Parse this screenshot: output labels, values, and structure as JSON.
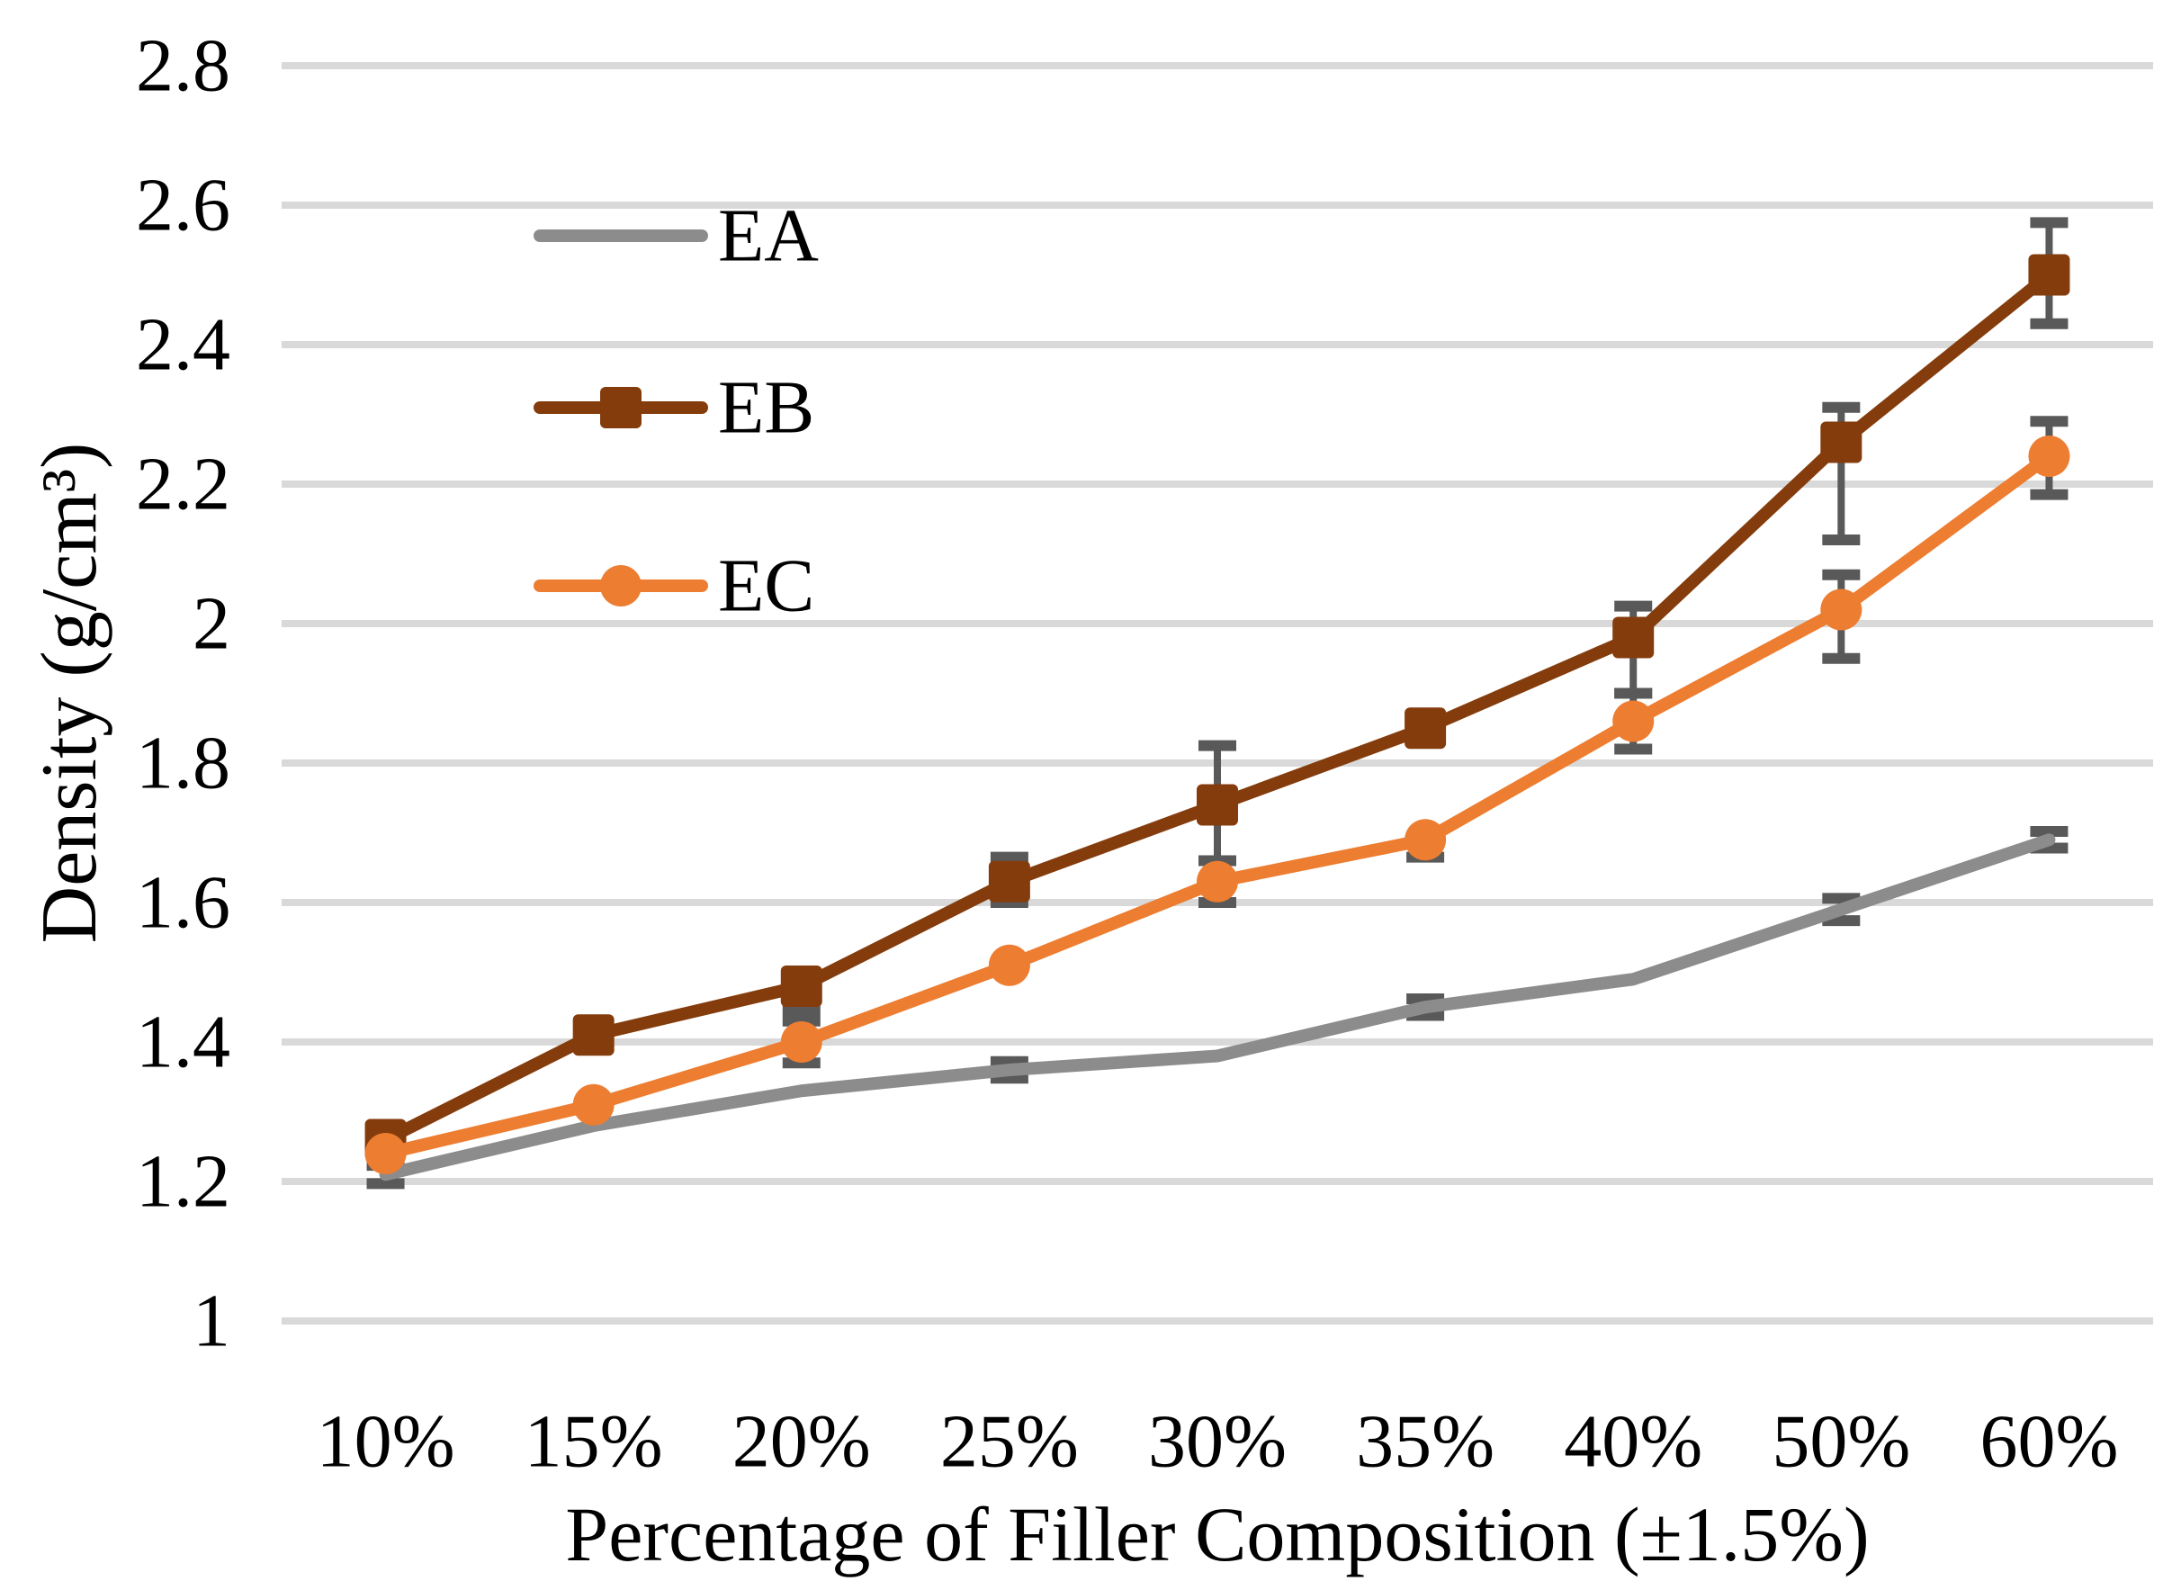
{
  "chart_data": {
    "type": "line",
    "title": "",
    "categories": [
      "10%",
      "15%",
      "20%",
      "25%",
      "30%",
      "35%",
      "40%",
      "50%",
      "60%"
    ],
    "series": [
      {
        "name": "EA",
        "color": "#8C8C8C",
        "marker": "none",
        "values": [
          1.21,
          1.28,
          1.33,
          1.36,
          1.38,
          1.45,
          1.49,
          1.59,
          1.69
        ],
        "err_plus": [
          0.013,
          0,
          0,
          0.012,
          0,
          0.012,
          0,
          0.016,
          0.012
        ],
        "err_minus": [
          0.013,
          0,
          0,
          0.012,
          0,
          0.012,
          0,
          0.016,
          0.012
        ]
      },
      {
        "name": "EB",
        "color": "#843C0C",
        "marker": "square",
        "values": [
          1.26,
          1.41,
          1.48,
          1.63,
          1.74,
          1.85,
          1.98,
          2.26,
          2.5
        ],
        "err_plus": [
          0,
          0,
          0,
          0.035,
          0.085,
          0,
          0.045,
          0.05,
          0.075
        ],
        "err_minus": [
          0,
          0,
          0.035,
          0.03,
          0.08,
          0,
          0.08,
          0.14,
          0.07
        ]
      },
      {
        "name": "EC",
        "color": "#ED7D31",
        "marker": "circle",
        "values": [
          1.24,
          1.31,
          1.4,
          1.51,
          1.63,
          1.69,
          1.86,
          2.02,
          2.24
        ],
        "err_plus": [
          0,
          0,
          0.03,
          0,
          0.03,
          0,
          0.04,
          0.05,
          0.05
        ],
        "err_minus": [
          0,
          0,
          0.03,
          0,
          0.03,
          0.025,
          0.04,
          0.07,
          0.055
        ]
      }
    ],
    "xlabel": "Percentage of Filler Composition (±1.5%)",
    "ylabel": "Density (g/cm³)",
    "ylim": [
      1.0,
      2.8
    ],
    "ytick_step": 0.2,
    "ytick_labels_top_to_bottom": [
      "2.8",
      "2.6",
      "2.4",
      "2.2",
      "2",
      "1.8",
      "1.6",
      "1.4",
      "1.2",
      "1"
    ],
    "grid": "horizontal-only",
    "legend_position": "inside-top-left",
    "legend_labels": [
      "EA",
      "EB",
      "EC"
    ],
    "colors": {
      "gridline": "#D9D9D9",
      "error_bar": "#595959",
      "background": "#FFFFFF",
      "text": "#000000"
    }
  }
}
